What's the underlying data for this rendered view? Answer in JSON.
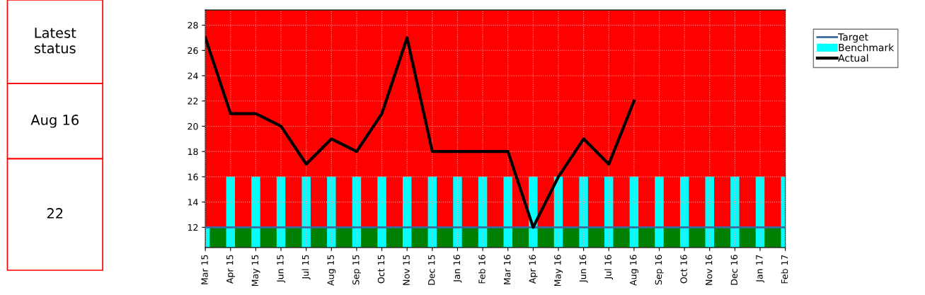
{
  "chart_data": {
    "type": "bar",
    "categories": [
      "Mar 15",
      "Apr 15",
      "May 15",
      "Jun 15",
      "Jul 15",
      "Aug 15",
      "Sep 15",
      "Oct 15",
      "Nov 15",
      "Dec 15",
      "Jan 16",
      "Feb 16",
      "Mar 16",
      "Apr 16",
      "May 16",
      "Jun 16",
      "Jul 16",
      "Aug 16",
      "Sep 16",
      "Oct 16",
      "Nov 16",
      "Dec 16",
      "Jan 17",
      "Feb 17"
    ],
    "series": [
      {
        "name": "Target",
        "type": "line",
        "color": "#3d6a9e",
        "values": [
          12,
          12,
          12,
          12,
          12,
          12,
          12,
          12,
          12,
          12,
          12,
          12,
          12,
          12,
          12,
          12,
          12,
          12,
          12,
          12,
          12,
          12,
          12,
          12
        ]
      },
      {
        "name": "Benchmark",
        "color": "#00ffff",
        "values": [
          12,
          16,
          16,
          16,
          16,
          16,
          16,
          16,
          16,
          16,
          16,
          16,
          16,
          16,
          16,
          16,
          16,
          16,
          16,
          16,
          16,
          16,
          16,
          16
        ]
      },
      {
        "name": "Actual",
        "type": "line",
        "color": "#000000",
        "values": [
          27,
          21,
          21,
          20,
          17,
          19,
          18,
          21,
          27,
          18,
          18,
          18,
          18,
          12,
          16,
          19,
          17,
          22,
          null,
          null,
          null,
          null,
          null,
          null
        ]
      }
    ],
    "bands": [
      {
        "axis": "y",
        "from": 10.4,
        "to": 12,
        "color": "#008000"
      },
      {
        "axis": "y",
        "from": 12,
        "to": 29.2,
        "color": "#ff0000"
      }
    ],
    "ylim": [
      10.4,
      29.2
    ],
    "yticks": [
      12,
      14,
      16,
      18,
      20,
      22,
      24,
      26,
      28
    ],
    "grid": true,
    "legend": "top right",
    "annotations": [
      "Latest status",
      "Aug 16",
      "22"
    ]
  }
}
